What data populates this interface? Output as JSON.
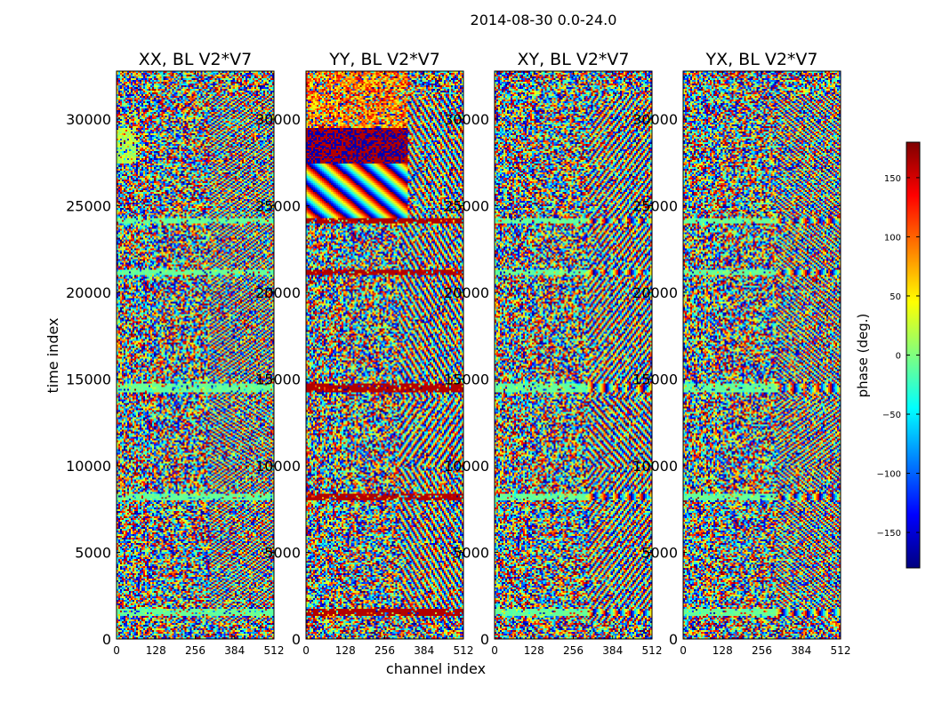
{
  "figure": {
    "suptitle": "2014-08-30 0.0-24.0",
    "xlabel": "channel index",
    "ylabel": "time index"
  },
  "chart_data": {
    "type": "heatmap",
    "xlim": [
      0,
      512
    ],
    "ylim": [
      0,
      32768
    ],
    "xticks": [
      0,
      128,
      256,
      384,
      512
    ],
    "yticks": [
      0,
      5000,
      10000,
      15000,
      20000,
      25000,
      30000
    ],
    "colorbar": {
      "label": "phase (deg.)",
      "range": [
        -180,
        180
      ],
      "ticks": [
        -150,
        -100,
        -50,
        0,
        50,
        100,
        150
      ],
      "tick_labels": [
        "−150",
        "−100",
        "−50",
        "0",
        "50",
        "100",
        "150"
      ],
      "colormap": "jet",
      "colors": [
        "#00007f",
        "#0000ff",
        "#007fff",
        "#00ffff",
        "#7fff7f",
        "#ffff00",
        "#ff7f00",
        "#ff0000",
        "#7f0000"
      ]
    },
    "panels": [
      {
        "title": "XX, BL V2*V7",
        "pol": "XX"
      },
      {
        "title": "YY, BL V2*V7",
        "pol": "YY"
      },
      {
        "title": "XY, BL V2*V7",
        "pol": "XY"
      },
      {
        "title": "YX, BL V2*V7",
        "pol": "YX"
      }
    ]
  }
}
